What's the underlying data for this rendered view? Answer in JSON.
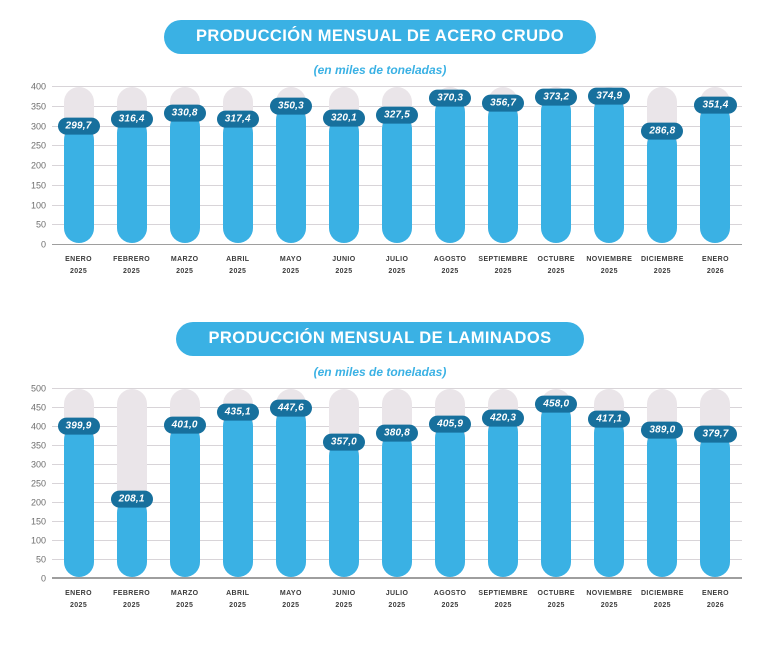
{
  "chart_data": [
    {
      "type": "bar",
      "title": "PRODUCCIÓN MENSUAL DE ACERO CRUDO",
      "subtitle": "(en miles de toneladas)",
      "categories": [
        {
          "month": "ENERO",
          "year": "2025"
        },
        {
          "month": "FEBRERO",
          "year": "2025"
        },
        {
          "month": "MARZO",
          "year": "2025"
        },
        {
          "month": "ABRIL",
          "year": "2025"
        },
        {
          "month": "MAYO",
          "year": "2025"
        },
        {
          "month": "JUNIO",
          "year": "2025"
        },
        {
          "month": "JULIO",
          "year": "2025"
        },
        {
          "month": "AGOSTO",
          "year": "2025"
        },
        {
          "month": "SEPTIEMBRE",
          "year": "2025"
        },
        {
          "month": "OCTUBRE",
          "year": "2025"
        },
        {
          "month": "NOVIEMBRE",
          "year": "2025"
        },
        {
          "month": "DICIEMBRE",
          "year": "2025"
        },
        {
          "month": "ENERO",
          "year": "2026"
        }
      ],
      "values": [
        299.7,
        316.4,
        330.8,
        317.4,
        350.3,
        320.1,
        327.5,
        370.3,
        356.7,
        373.2,
        374.9,
        286.8,
        351.4
      ],
      "value_labels": [
        "299,7",
        "316,4",
        "330,8",
        "317,4",
        "350,3",
        "320,1",
        "327,5",
        "370,3",
        "356,7",
        "373,2",
        "374,9",
        "286,8",
        "351,4"
      ],
      "xlabel": "",
      "ylabel": "",
      "ylim": [
        0,
        400
      ],
      "ytick": 50,
      "grid": true,
      "legend": false
    },
    {
      "type": "bar",
      "title": "PRODUCCIÓN MENSUAL DE LAMINADOS",
      "subtitle": "(en miles de toneladas)",
      "categories": [
        {
          "month": "ENERO",
          "year": "2025"
        },
        {
          "month": "FEBRERO",
          "year": "2025"
        },
        {
          "month": "MARZO",
          "year": "2025"
        },
        {
          "month": "ABRIL",
          "year": "2025"
        },
        {
          "month": "MAYO",
          "year": "2025"
        },
        {
          "month": "JUNIO",
          "year": "2025"
        },
        {
          "month": "JULIO",
          "year": "2025"
        },
        {
          "month": "AGOSTO",
          "year": "2025"
        },
        {
          "month": "SEPTIEMBRE",
          "year": "2025"
        },
        {
          "month": "OCTUBRE",
          "year": "2025"
        },
        {
          "month": "NOVIEMBRE",
          "year": "2025"
        },
        {
          "month": "DICIEMBRE",
          "year": "2025"
        },
        {
          "month": "ENERO",
          "year": "2026"
        }
      ],
      "values": [
        399.9,
        208.1,
        401.0,
        435.1,
        447.6,
        357.0,
        380.8,
        405.9,
        420.3,
        458.0,
        417.1,
        389.0,
        379.7
      ],
      "value_labels": [
        "399,9",
        "208,1",
        "401,0",
        "435,1",
        "447,6",
        "357,0",
        "380,8",
        "405,9",
        "420,3",
        "458,0",
        "417,1",
        "389,0",
        "379,7"
      ],
      "xlabel": "",
      "ylabel": "",
      "ylim": [
        0,
        500
      ],
      "ytick": 50,
      "grid": true,
      "legend": false
    }
  ],
  "colors": {
    "bar_blue": "#3AB1E4",
    "badge_dark_blue": "#17709D",
    "background_pill_gray": "#EAE5E9",
    "title_pill_blue": "#3AB1E4",
    "subtitle_blue": "#3AB1E4",
    "gridline_gray": "#D8D4D8",
    "baseline_gray": "#9E9E9E",
    "y_axis_text_gray": "#6E6E6E",
    "month_text_dark": "#3C3C3C"
  }
}
